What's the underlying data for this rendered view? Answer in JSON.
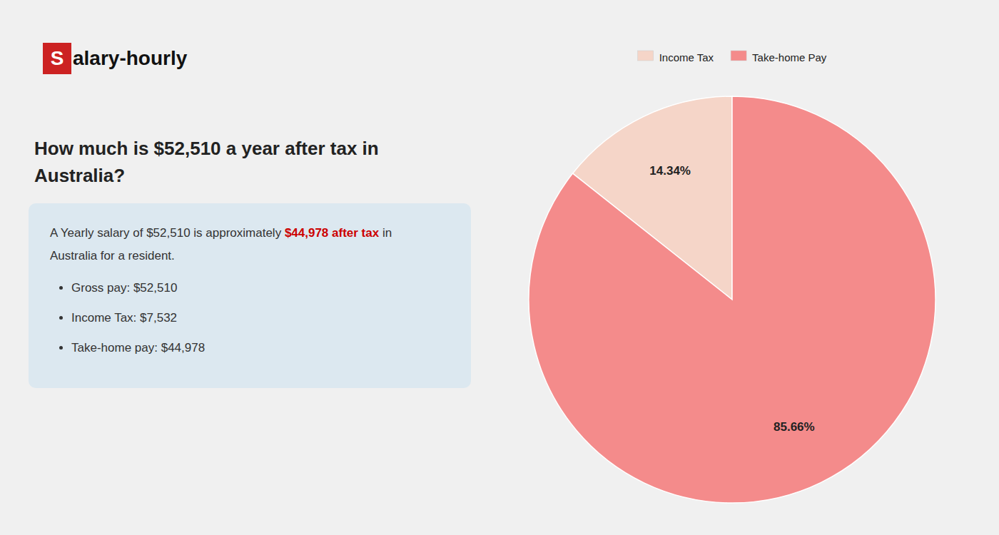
{
  "chart_data": {
    "type": "pie",
    "title": "How much is $52,510 a year after tax in Australia?",
    "categories": [
      "Income Tax",
      "Take-home Pay"
    ],
    "values": [
      14.34,
      85.66
    ],
    "value_labels": [
      "14.34%",
      "85.66%"
    ],
    "colors": [
      "#f5d5c8",
      "#f48b8b"
    ],
    "data_labels": true,
    "legend": "top",
    "annotations": [
      {
        "text": "S",
        "color": "#cc2222"
      },
      {
        "text": "alary-hourly"
      },
      {
        "text": "A Yearly salary of $52,510 is approximately "
      },
      {
        "text": "$44,978 after tax",
        "color": "#cc0000"
      },
      {
        "text": " in"
      },
      {
        "text": "Australia for a resident."
      },
      {
        "text": "Gross pay: $52,510"
      },
      {
        "text": "Income Tax: $7,532"
      },
      {
        "text": "Take-home pay: $44,978"
      }
    ]
  }
}
